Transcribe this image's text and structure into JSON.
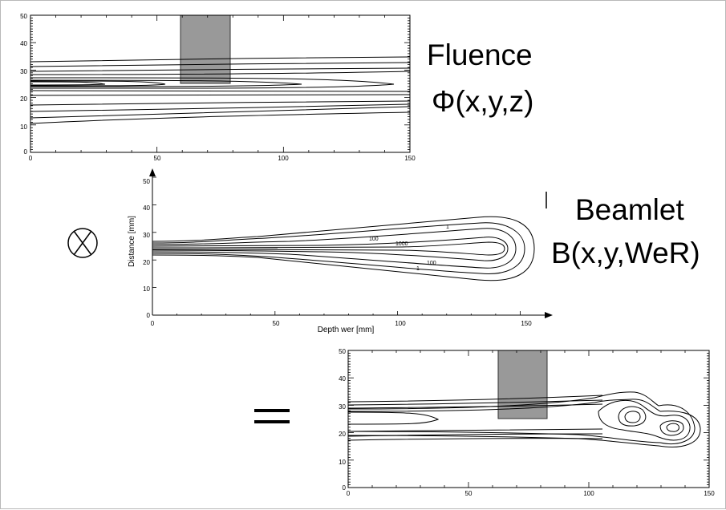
{
  "labels": {
    "fluence_title": "Fluence",
    "fluence_formula": "Φ(x,y,z)",
    "beamlet_title": "Beamlet",
    "beamlet_formula": "B(x,y,WeR)",
    "convolution_operator": "ⓧ",
    "equals_operator": "="
  },
  "colors": {
    "block": "#999999",
    "block_edge": "#333333",
    "line": "#000000"
  },
  "plots": {
    "fluence": {
      "x_ticks": [
        "0",
        "50",
        "100",
        "150"
      ],
      "y_ticks": [
        "0",
        "10",
        "20",
        "30",
        "40",
        "50"
      ],
      "xlim": [
        0,
        150
      ],
      "ylim": [
        0,
        50
      ],
      "block": {
        "x": [
          60,
          80
        ],
        "y": [
          26,
          50
        ]
      }
    },
    "beamlet": {
      "x_ticks": [
        "0",
        "50",
        "100",
        "150"
      ],
      "y_ticks": [
        "0",
        "10",
        "20",
        "30",
        "40",
        "50"
      ],
      "xlim": [
        0,
        160
      ],
      "ylim": [
        0,
        50
      ],
      "xlabel": "Depth wer [mm]",
      "ylabel": "Distance [mm]",
      "contour_labels": [
        "1",
        "100",
        "1000",
        "100",
        "1"
      ]
    },
    "result": {
      "x_ticks": [
        "0",
        "50",
        "100",
        "150"
      ],
      "y_ticks": [
        "0",
        "10",
        "20",
        "30",
        "40",
        "50"
      ],
      "xlim": [
        0,
        150
      ],
      "ylim": [
        0,
        50
      ],
      "block": {
        "x": [
          60,
          80
        ],
        "y": [
          26,
          50
        ]
      }
    }
  }
}
